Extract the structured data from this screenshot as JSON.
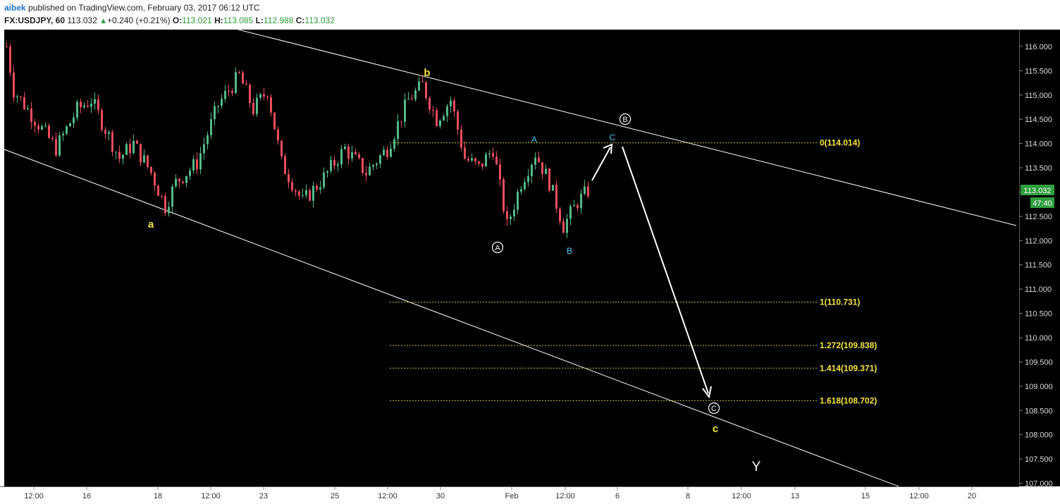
{
  "header": {
    "author": "aibek",
    "published_text": " published on TradingView.com, February 03, 2017 06:12 UTC",
    "symbol": "FX:USDJPY, 60",
    "last": "113.032",
    "change": "+0.240 (+0.21%)",
    "o_label": "O:",
    "o_value": "113.021",
    "h_label": "H:",
    "h_value": "113.085",
    "l_label": "L:",
    "l_value": "112.988",
    "c_label": "C:",
    "c_value": "113.032"
  },
  "colors": {
    "background": "#000000",
    "up_candle": "#53b987",
    "down_candle": "#eb4d5c",
    "wave_yellow": "#f5e642",
    "wave_cyan": "#4fc3f7",
    "fib_line": "#c8c832",
    "price_label_bg": "#2e9e3e",
    "trendline": "#ffffff"
  },
  "chart_data": {
    "type": "line",
    "title": "",
    "instrument": "FX:USDJPY",
    "timeframe": "60",
    "y_axis": {
      "ticks": [
        "107.000",
        "107.500",
        "108.000",
        "108.500",
        "109.000",
        "109.500",
        "110.000",
        "110.500",
        "111.000",
        "111.500",
        "112.000",
        "112.500",
        "113.000",
        "113.500",
        "114.000",
        "114.500",
        "115.000",
        "115.500",
        "116.000"
      ],
      "ylim": [
        106.95,
        116.4
      ]
    },
    "x_axis": {
      "ticks": [
        "12:00",
        "16",
        "18",
        "12:00",
        "23",
        "25",
        "12:00",
        "30",
        "Feb",
        "12:00",
        "6",
        "8",
        "12:00",
        "13",
        "15",
        "12:00",
        "20"
      ]
    },
    "price_series": [
      {
        "x": 0,
        "y": 116.0
      },
      {
        "x": 2,
        "y": 115.1
      },
      {
        "x": 8,
        "y": 114.5
      },
      {
        "x": 14,
        "y": 113.9
      },
      {
        "x": 20,
        "y": 114.7
      },
      {
        "x": 24,
        "y": 114.9
      },
      {
        "x": 28,
        "y": 114.3
      },
      {
        "x": 32,
        "y": 113.7
      },
      {
        "x": 36,
        "y": 114.0
      },
      {
        "x": 41,
        "y": 113.4
      },
      {
        "x": 45,
        "y": 112.7
      },
      {
        "x": 48,
        "y": 113.2
      },
      {
        "x": 54,
        "y": 113.6
      },
      {
        "x": 60,
        "y": 114.8
      },
      {
        "x": 66,
        "y": 115.4
      },
      {
        "x": 70,
        "y": 114.7
      },
      {
        "x": 74,
        "y": 115.1
      },
      {
        "x": 78,
        "y": 113.6
      },
      {
        "x": 84,
        "y": 112.8
      },
      {
        "x": 90,
        "y": 113.3
      },
      {
        "x": 96,
        "y": 113.9
      },
      {
        "x": 102,
        "y": 113.4
      },
      {
        "x": 108,
        "y": 113.9
      },
      {
        "x": 114,
        "y": 114.9
      },
      {
        "x": 118,
        "y": 115.2
      },
      {
        "x": 122,
        "y": 114.5
      },
      {
        "x": 126,
        "y": 114.9
      },
      {
        "x": 130,
        "y": 113.7
      },
      {
        "x": 134,
        "y": 113.5
      },
      {
        "x": 138,
        "y": 113.9
      },
      {
        "x": 142,
        "y": 112.3
      },
      {
        "x": 146,
        "y": 113.2
      },
      {
        "x": 150,
        "y": 113.8
      },
      {
        "x": 154,
        "y": 113.2
      },
      {
        "x": 158,
        "y": 112.3
      },
      {
        "x": 162,
        "y": 112.8
      },
      {
        "x": 166,
        "y": 113.1
      }
    ],
    "price_label": "113.032",
    "countdown_label": "47:40",
    "fib_levels": [
      {
        "label": "0(114.014)",
        "value": 114.014
      },
      {
        "label": "1(110.731)",
        "value": 110.731
      },
      {
        "label": "1.272(109.838)",
        "value": 109.838
      },
      {
        "label": "1.414(109.371)",
        "value": 109.371
      },
      {
        "label": "1.618(108.702)",
        "value": 108.702
      }
    ],
    "wave_labels": [
      {
        "text": "a",
        "style": "yellow"
      },
      {
        "text": "b",
        "style": "yellow"
      },
      {
        "text": "A",
        "style": "circled"
      },
      {
        "text": "A",
        "style": "cyan"
      },
      {
        "text": "B",
        "style": "cyan"
      },
      {
        "text": "C",
        "style": "cyan"
      },
      {
        "text": "B",
        "style": "circled"
      },
      {
        "text": "C",
        "style": "circled"
      },
      {
        "text": "c",
        "style": "yellow"
      },
      {
        "text": "Y",
        "style": "white"
      }
    ]
  }
}
